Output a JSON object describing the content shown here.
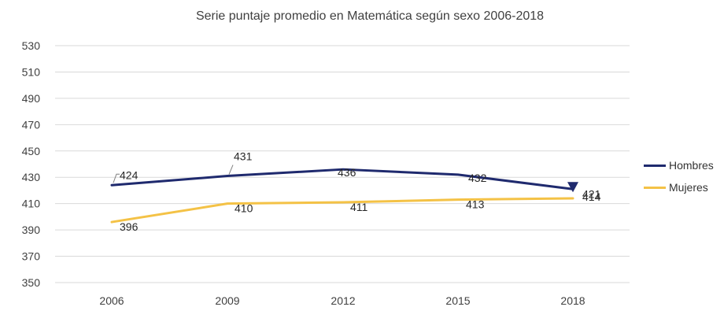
{
  "chart_data": {
    "type": "line",
    "title": "Serie puntaje promedio en Matemática según sexo 2006-2018",
    "xlabel": "",
    "ylabel": "",
    "categories": [
      "2006",
      "2009",
      "2012",
      "2015",
      "2018"
    ],
    "ylim": [
      350,
      530
    ],
    "yticks": [
      "350",
      "370",
      "390",
      "410",
      "430",
      "450",
      "470",
      "490",
      "510",
      "530"
    ],
    "grid": true,
    "legend_position": "right",
    "series": [
      {
        "name": "Hombres",
        "color": "#1f2a6e",
        "values": [
          424,
          431,
          436,
          432,
          421
        ],
        "labels": [
          "424",
          "431",
          "436",
          "432",
          "421"
        ],
        "last_marker": "triangle-down"
      },
      {
        "name": "Mujeres",
        "color": "#f4c246",
        "values": [
          396,
          410,
          411,
          413,
          414
        ],
        "labels": [
          "396",
          "410",
          "411",
          "413",
          "414"
        ]
      }
    ]
  }
}
